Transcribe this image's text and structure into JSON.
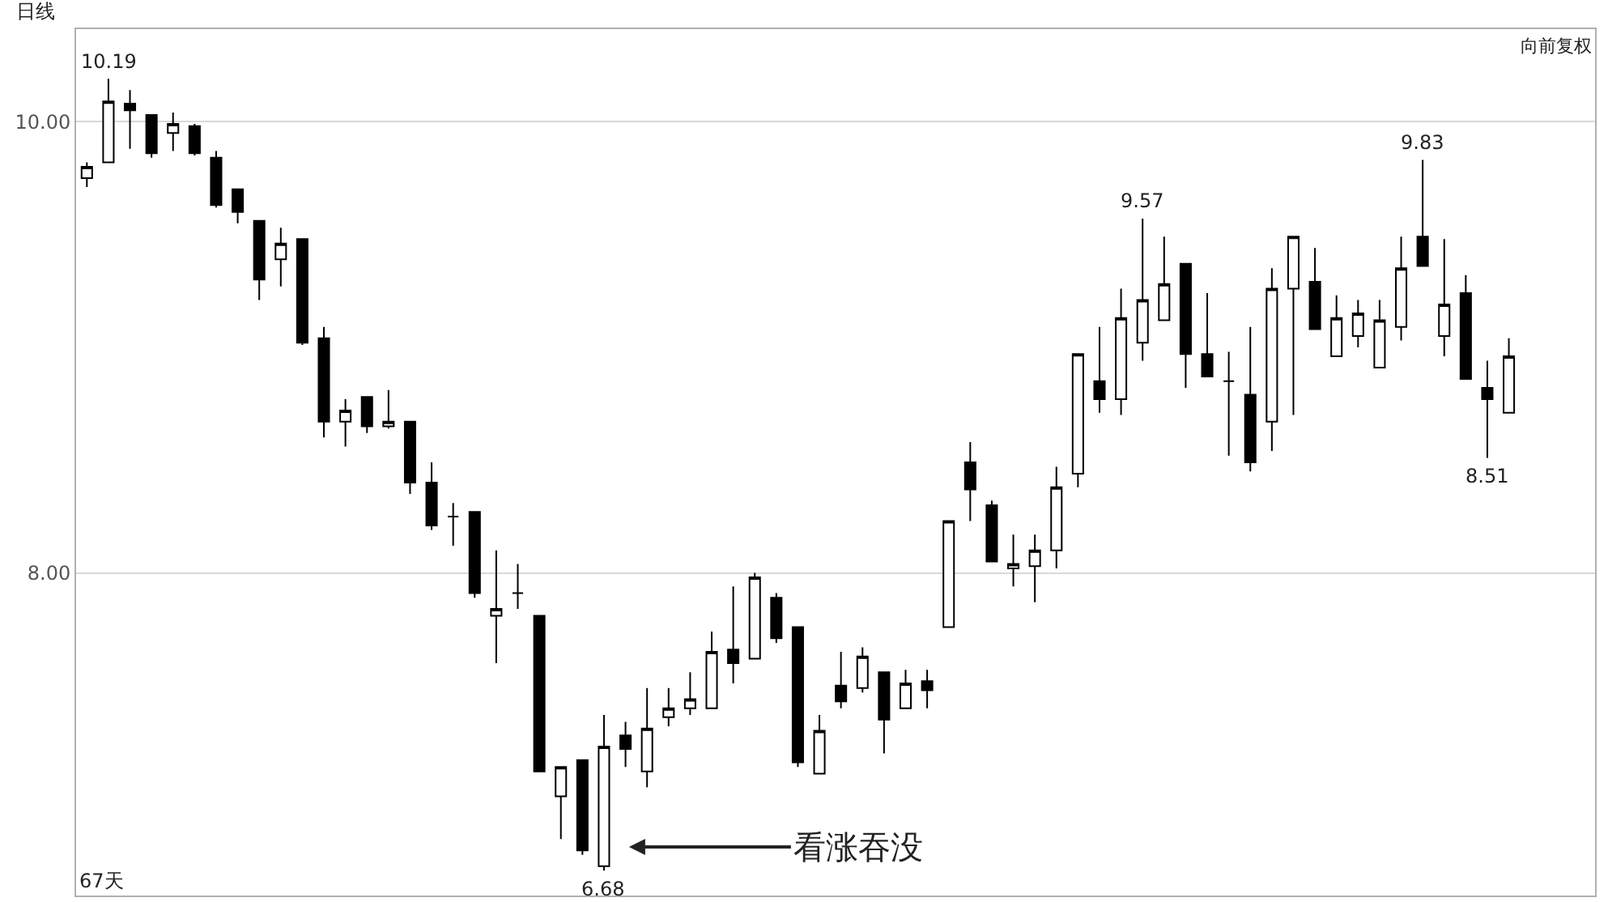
{
  "chart_data": {
    "type": "candlestick",
    "title": "日线",
    "subtitle": "向前复权",
    "color": "#000000",
    "categories": [
      null,
      null,
      null,
      null,
      null,
      null,
      null,
      null,
      null,
      null,
      null,
      null,
      null,
      null,
      null,
      null,
      null,
      null,
      null,
      null,
      null,
      null,
      null,
      null,
      null,
      null,
      null,
      null,
      null,
      null,
      null,
      null,
      null,
      null,
      null,
      null,
      null,
      null,
      null,
      null,
      null,
      null,
      null,
      null,
      null,
      null,
      null,
      null,
      null,
      null,
      null,
      null,
      null,
      null,
      null,
      null,
      null,
      null,
      null,
      null,
      null,
      null,
      null,
      null,
      null,
      null,
      null
    ],
    "ohlc": [
      [
        9.75,
        9.82,
        9.71,
        9.8
      ],
      [
        9.82,
        10.19,
        9.82,
        10.09
      ],
      [
        10.08,
        10.14,
        9.88,
        10.05
      ],
      [
        10.03,
        10.03,
        9.84,
        9.86
      ],
      [
        9.95,
        10.04,
        9.87,
        9.99
      ],
      [
        9.98,
        9.99,
        9.85,
        9.86
      ],
      [
        9.84,
        9.87,
        9.62,
        9.63
      ],
      [
        9.7,
        9.7,
        9.55,
        9.6
      ],
      [
        9.56,
        9.56,
        9.21,
        9.3
      ],
      [
        9.39,
        9.53,
        9.27,
        9.46
      ],
      [
        9.48,
        9.48,
        9.01,
        9.02
      ],
      [
        9.04,
        9.09,
        8.6,
        8.67
      ],
      [
        8.67,
        8.77,
        8.56,
        8.72
      ],
      [
        8.78,
        8.78,
        8.62,
        8.65
      ],
      [
        8.65,
        8.81,
        8.64,
        8.67
      ],
      [
        8.67,
        8.67,
        8.35,
        8.4
      ],
      [
        8.4,
        8.49,
        8.19,
        8.21
      ],
      [
        8.25,
        8.31,
        8.12,
        8.25
      ],
      [
        8.27,
        8.27,
        7.89,
        7.91
      ],
      [
        7.81,
        8.1,
        7.6,
        7.84
      ],
      [
        7.91,
        8.04,
        7.84,
        7.91
      ],
      [
        7.81,
        7.81,
        7.12,
        7.12
      ],
      [
        7.01,
        7.14,
        6.82,
        7.14
      ],
      [
        7.17,
        7.17,
        6.75,
        6.77
      ],
      [
        6.7,
        7.37,
        6.68,
        7.23
      ],
      [
        7.28,
        7.34,
        7.14,
        7.22
      ],
      [
        7.12,
        7.49,
        7.05,
        7.31
      ],
      [
        7.36,
        7.49,
        7.32,
        7.4
      ],
      [
        7.4,
        7.56,
        7.37,
        7.44
      ],
      [
        7.4,
        7.74,
        7.4,
        7.65
      ],
      [
        7.66,
        7.94,
        7.51,
        7.6
      ],
      [
        7.62,
        8.0,
        7.62,
        7.98
      ],
      [
        7.89,
        7.91,
        7.69,
        7.71
      ],
      [
        7.76,
        7.76,
        7.14,
        7.16
      ],
      [
        7.11,
        7.37,
        7.11,
        7.3
      ],
      [
        7.5,
        7.65,
        7.4,
        7.43
      ],
      [
        7.49,
        7.67,
        7.47,
        7.63
      ],
      [
        7.56,
        7.56,
        7.2,
        7.35
      ],
      [
        7.4,
        7.57,
        7.4,
        7.51
      ],
      [
        7.52,
        7.57,
        7.4,
        7.48
      ],
      [
        7.76,
        8.23,
        7.76,
        8.23
      ],
      [
        8.49,
        8.58,
        8.23,
        8.37
      ],
      [
        8.3,
        8.32,
        8.05,
        8.05
      ],
      [
        8.02,
        8.17,
        7.94,
        8.04
      ],
      [
        8.03,
        8.17,
        7.87,
        8.1
      ],
      [
        8.1,
        8.47,
        8.02,
        8.38
      ],
      [
        8.44,
        8.97,
        8.38,
        8.97
      ],
      [
        8.85,
        9.09,
        8.71,
        8.77
      ],
      [
        8.77,
        9.26,
        8.7,
        9.13
      ],
      [
        9.02,
        9.57,
        8.94,
        9.21
      ],
      [
        9.12,
        9.49,
        9.12,
        9.28
      ],
      [
        9.37,
        9.37,
        8.82,
        8.97
      ],
      [
        8.97,
        9.24,
        8.87,
        8.87
      ],
      [
        8.85,
        8.98,
        8.52,
        8.85
      ],
      [
        8.79,
        9.09,
        8.45,
        8.49
      ],
      [
        8.67,
        9.35,
        8.54,
        9.26
      ],
      [
        9.26,
        9.49,
        8.7,
        9.49
      ],
      [
        9.29,
        9.44,
        9.08,
        9.08
      ],
      [
        8.96,
        9.23,
        8.96,
        9.13
      ],
      [
        9.05,
        9.21,
        9.0,
        9.15
      ],
      [
        8.91,
        9.21,
        8.91,
        9.12
      ],
      [
        9.09,
        9.49,
        9.03,
        9.35
      ],
      [
        9.49,
        9.83,
        9.36,
        9.36
      ],
      [
        9.05,
        9.48,
        8.96,
        9.19
      ],
      [
        9.24,
        9.32,
        8.86,
        8.86
      ],
      [
        8.82,
        8.94,
        8.51,
        8.77
      ],
      [
        8.71,
        9.04,
        8.71,
        8.96
      ]
    ],
    "ylim": [
      6.57,
      10.41
    ],
    "yticks": [
      {
        "value": 8,
        "label": "8.00"
      },
      {
        "value": 10,
        "label": "10.00"
      }
    ],
    "grid": "y",
    "tick_labels": "y",
    "annotations": [
      {
        "text": "10.19",
        "y": 10.19
      },
      {
        "text": "6.68",
        "y": 6.68
      },
      {
        "text": "9.57",
        "y": 9.57
      },
      {
        "text": "9.83",
        "y": 9.83
      },
      {
        "text": "8.51",
        "y": 8.51
      },
      "看涨吞没",
      "67天"
    ]
  }
}
